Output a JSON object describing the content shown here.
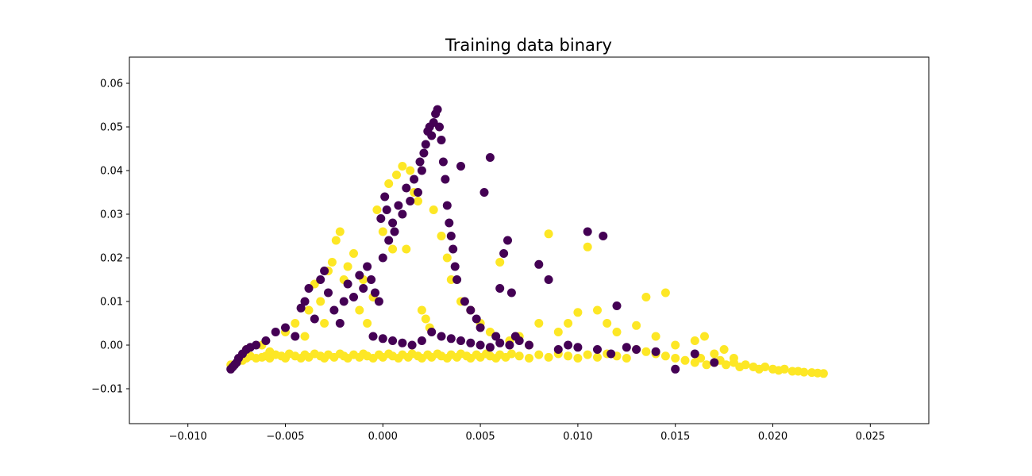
{
  "chart_data": {
    "type": "scatter",
    "title": "Training data binary",
    "xlabel": "",
    "ylabel": "",
    "xlim": [
      -0.013,
      0.028
    ],
    "ylim": [
      -0.018,
      0.066
    ],
    "xticks": [
      -0.01,
      -0.005,
      0.0,
      0.005,
      0.01,
      0.015,
      0.02,
      0.025
    ],
    "xtick_labels": [
      "−0.010",
      "−0.005",
      "0.000",
      "0.005",
      "0.010",
      "0.015",
      "0.020",
      "0.025"
    ],
    "yticks": [
      -0.01,
      0.0,
      0.01,
      0.02,
      0.03,
      0.04,
      0.05,
      0.06
    ],
    "ytick_labels": [
      "−0.01",
      "0.00",
      "0.01",
      "0.02",
      "0.03",
      "0.04",
      "0.05",
      "0.06"
    ],
    "grid": false,
    "legend": "none",
    "series": [
      {
        "color": "#fde725",
        "points": [
          [
            -0.0078,
            -0.0045
          ],
          [
            -0.0075,
            -0.004
          ],
          [
            -0.0072,
            -0.0035
          ],
          [
            -0.007,
            -0.003
          ],
          [
            -0.0068,
            -0.0025
          ],
          [
            -0.0065,
            -0.003
          ],
          [
            -0.0062,
            -0.0028
          ],
          [
            -0.006,
            -0.0025
          ],
          [
            -0.0058,
            -0.003
          ],
          [
            -0.0055,
            -0.0022
          ],
          [
            -0.0052,
            -0.0025
          ],
          [
            -0.005,
            -0.003
          ],
          [
            -0.0048,
            -0.002
          ],
          [
            -0.0045,
            -0.0025
          ],
          [
            -0.0042,
            -0.003
          ],
          [
            -0.004,
            -0.0022
          ],
          [
            -0.0038,
            -0.0028
          ],
          [
            -0.0035,
            -0.002
          ],
          [
            -0.0032,
            -0.0025
          ],
          [
            -0.003,
            -0.003
          ],
          [
            -0.0028,
            -0.0022
          ],
          [
            -0.0025,
            -0.0028
          ],
          [
            -0.0022,
            -0.002
          ],
          [
            -0.002,
            -0.0025
          ],
          [
            -0.0018,
            -0.003
          ],
          [
            -0.0015,
            -0.0022
          ],
          [
            -0.0012,
            -0.0028
          ],
          [
            -0.001,
            -0.002
          ],
          [
            -0.0008,
            -0.0025
          ],
          [
            -0.0005,
            -0.003
          ],
          [
            -0.0002,
            -0.0022
          ],
          [
            0.0,
            -0.0028
          ],
          [
            0.0003,
            -0.002
          ],
          [
            0.0005,
            -0.0025
          ],
          [
            0.0008,
            -0.003
          ],
          [
            0.001,
            -0.0022
          ],
          [
            0.0013,
            -0.0028
          ],
          [
            0.0015,
            -0.002
          ],
          [
            0.0018,
            -0.0025
          ],
          [
            0.002,
            -0.003
          ],
          [
            0.0023,
            -0.0022
          ],
          [
            0.0025,
            -0.0028
          ],
          [
            0.0028,
            -0.002
          ],
          [
            0.003,
            -0.0025
          ],
          [
            0.0033,
            -0.003
          ],
          [
            0.0035,
            -0.0022
          ],
          [
            0.0038,
            -0.0028
          ],
          [
            0.004,
            -0.002
          ],
          [
            0.0043,
            -0.0025
          ],
          [
            0.0045,
            -0.003
          ],
          [
            0.0048,
            -0.0022
          ],
          [
            0.005,
            -0.0028
          ],
          [
            0.0053,
            -0.002
          ],
          [
            0.0055,
            -0.0025
          ],
          [
            0.0058,
            -0.003
          ],
          [
            0.006,
            -0.0022
          ],
          [
            0.0063,
            -0.0028
          ],
          [
            0.0066,
            -0.002
          ],
          [
            0.007,
            -0.0025
          ],
          [
            0.0075,
            -0.003
          ],
          [
            0.008,
            -0.0022
          ],
          [
            0.0085,
            -0.0028
          ],
          [
            0.009,
            -0.002
          ],
          [
            0.0095,
            -0.0025
          ],
          [
            0.01,
            -0.003
          ],
          [
            0.0105,
            -0.0022
          ],
          [
            0.011,
            -0.0028
          ],
          [
            0.0115,
            -0.002
          ],
          [
            0.012,
            -0.0025
          ],
          [
            0.0125,
            -0.003
          ],
          [
            0.013,
            -0.001
          ],
          [
            0.0135,
            -0.0015
          ],
          [
            0.014,
            -0.002
          ],
          [
            0.0145,
            -0.0025
          ],
          [
            0.015,
            -0.003
          ],
          [
            0.0155,
            -0.0035
          ],
          [
            0.016,
            -0.004
          ],
          [
            0.0163,
            -0.003
          ],
          [
            0.0166,
            -0.0045
          ],
          [
            0.017,
            -0.004
          ],
          [
            0.0173,
            -0.0035
          ],
          [
            0.0176,
            -0.0045
          ],
          [
            0.018,
            -0.004
          ],
          [
            0.0183,
            -0.005
          ],
          [
            0.0186,
            -0.0045
          ],
          [
            0.019,
            -0.005
          ],
          [
            0.0193,
            -0.0055
          ],
          [
            0.0196,
            -0.005
          ],
          [
            0.02,
            -0.0055
          ],
          [
            0.0203,
            -0.0058
          ],
          [
            0.0206,
            -0.0055
          ],
          [
            0.021,
            -0.006
          ],
          [
            0.0213,
            -0.006
          ],
          [
            0.0216,
            -0.0062
          ],
          [
            0.022,
            -0.0063
          ],
          [
            0.0223,
            -0.0064
          ],
          [
            0.0226,
            -0.0065
          ],
          [
            -0.007,
            -0.001
          ],
          [
            -0.0062,
            0.0
          ],
          [
            -0.0058,
            -0.0015
          ],
          [
            -0.005,
            0.003
          ],
          [
            -0.0045,
            0.005
          ],
          [
            -0.004,
            0.002
          ],
          [
            -0.0038,
            0.008
          ],
          [
            -0.0035,
            0.014
          ],
          [
            -0.0032,
            0.01
          ],
          [
            -0.003,
            0.005
          ],
          [
            -0.0028,
            0.017
          ],
          [
            -0.0026,
            0.019
          ],
          [
            -0.0024,
            0.024
          ],
          [
            -0.0022,
            0.026
          ],
          [
            -0.002,
            0.015
          ],
          [
            -0.0018,
            0.018
          ],
          [
            -0.0015,
            0.021
          ],
          [
            -0.0012,
            0.008
          ],
          [
            -0.001,
            0.015
          ],
          [
            -0.0008,
            0.005
          ],
          [
            -0.0005,
            0.011
          ],
          [
            -0.0003,
            0.031
          ],
          [
            0.0,
            0.026
          ],
          [
            0.0003,
            0.037
          ],
          [
            0.0005,
            0.022
          ],
          [
            0.0007,
            0.039
          ],
          [
            0.001,
            0.041
          ],
          [
            0.0012,
            0.022
          ],
          [
            0.0014,
            0.04
          ],
          [
            0.0016,
            0.035
          ],
          [
            0.0018,
            0.033
          ],
          [
            0.002,
            0.008
          ],
          [
            0.0022,
            0.006
          ],
          [
            0.0024,
            0.004
          ],
          [
            0.0026,
            0.031
          ],
          [
            0.003,
            0.025
          ],
          [
            0.0033,
            0.02
          ],
          [
            0.0035,
            0.015
          ],
          [
            0.004,
            0.01
          ],
          [
            0.0045,
            0.008
          ],
          [
            0.005,
            0.005
          ],
          [
            0.0055,
            0.003
          ],
          [
            0.006,
            0.019
          ],
          [
            0.0065,
            0.001
          ],
          [
            0.007,
            0.002
          ],
          [
            0.0075,
            0.0
          ],
          [
            0.008,
            0.005
          ],
          [
            0.0085,
            0.0255
          ],
          [
            0.009,
            0.003
          ],
          [
            0.0095,
            0.005
          ],
          [
            0.01,
            0.0075
          ],
          [
            0.0105,
            0.0225
          ],
          [
            0.011,
            0.008
          ],
          [
            0.0115,
            0.005
          ],
          [
            0.012,
            0.003
          ],
          [
            0.013,
            0.0045
          ],
          [
            0.0135,
            0.011
          ],
          [
            0.014,
            0.002
          ],
          [
            0.0145,
            0.012
          ],
          [
            0.015,
            0.0
          ],
          [
            0.016,
            0.001
          ],
          [
            0.0165,
            0.002
          ],
          [
            0.017,
            -0.002
          ],
          [
            0.0175,
            -0.001
          ],
          [
            0.018,
            -0.003
          ]
        ]
      },
      {
        "color": "#440154",
        "points": [
          [
            -0.0078,
            -0.0055
          ],
          [
            -0.0077,
            -0.005
          ],
          [
            -0.0076,
            -0.0045
          ],
          [
            -0.0075,
            -0.004
          ],
          [
            -0.0074,
            -0.003
          ],
          [
            -0.0072,
            -0.002
          ],
          [
            -0.007,
            -0.001
          ],
          [
            -0.0068,
            -0.0005
          ],
          [
            -0.0065,
            0.0
          ],
          [
            -0.006,
            0.001
          ],
          [
            -0.0055,
            0.003
          ],
          [
            -0.005,
            0.004
          ],
          [
            -0.0045,
            0.002
          ],
          [
            -0.0042,
            0.0085
          ],
          [
            -0.004,
            0.01
          ],
          [
            -0.0038,
            0.013
          ],
          [
            -0.0035,
            0.006
          ],
          [
            -0.0032,
            0.015
          ],
          [
            -0.003,
            0.017
          ],
          [
            -0.0028,
            0.012
          ],
          [
            -0.0025,
            0.008
          ],
          [
            -0.0022,
            0.005
          ],
          [
            -0.002,
            0.01
          ],
          [
            -0.0018,
            0.014
          ],
          [
            -0.0015,
            0.011
          ],
          [
            -0.0012,
            0.016
          ],
          [
            -0.001,
            0.013
          ],
          [
            -0.0008,
            0.018
          ],
          [
            -0.0006,
            0.015
          ],
          [
            -0.0004,
            0.012
          ],
          [
            -0.0002,
            0.01
          ],
          [
            -0.0001,
            0.029
          ],
          [
            0.0,
            0.02
          ],
          [
            0.0001,
            0.034
          ],
          [
            0.0002,
            0.031
          ],
          [
            0.0003,
            0.024
          ],
          [
            0.0005,
            0.028
          ],
          [
            0.0006,
            0.026
          ],
          [
            0.0008,
            0.032
          ],
          [
            0.001,
            0.03
          ],
          [
            0.0012,
            0.036
          ],
          [
            0.0014,
            0.033
          ],
          [
            0.0016,
            0.038
          ],
          [
            0.0018,
            0.035
          ],
          [
            0.0019,
            0.042
          ],
          [
            0.002,
            0.04
          ],
          [
            0.0021,
            0.044
          ],
          [
            0.0022,
            0.046
          ],
          [
            0.0023,
            0.049
          ],
          [
            0.0024,
            0.05
          ],
          [
            0.0025,
            0.048
          ],
          [
            0.0026,
            0.051
          ],
          [
            0.0027,
            0.053
          ],
          [
            0.0028,
            0.054
          ],
          [
            0.0029,
            0.05
          ],
          [
            0.003,
            0.047
          ],
          [
            0.0031,
            0.042
          ],
          [
            0.0032,
            0.038
          ],
          [
            0.0033,
            0.032
          ],
          [
            0.0034,
            0.028
          ],
          [
            0.0035,
            0.025
          ],
          [
            0.0036,
            0.022
          ],
          [
            0.0037,
            0.018
          ],
          [
            0.0038,
            0.015
          ],
          [
            0.004,
            0.041
          ],
          [
            0.0042,
            0.01
          ],
          [
            0.0045,
            0.008
          ],
          [
            0.0048,
            0.006
          ],
          [
            0.005,
            0.004
          ],
          [
            0.0052,
            0.035
          ],
          [
            0.0055,
            0.043
          ],
          [
            0.0058,
            0.002
          ],
          [
            0.006,
            0.013
          ],
          [
            0.0062,
            0.021
          ],
          [
            0.0064,
            0.024
          ],
          [
            0.0066,
            0.012
          ],
          [
            0.0068,
            0.002
          ],
          [
            0.007,
            0.001
          ],
          [
            0.0075,
            0.0
          ],
          [
            0.008,
            0.0185
          ],
          [
            0.0085,
            0.015
          ],
          [
            0.009,
            -0.001
          ],
          [
            0.0095,
            0.0
          ],
          [
            0.01,
            -0.0005
          ],
          [
            0.0105,
            0.026
          ],
          [
            0.011,
            -0.001
          ],
          [
            0.0113,
            0.025
          ],
          [
            0.0117,
            -0.002
          ],
          [
            0.012,
            0.009
          ],
          [
            0.0125,
            -0.0005
          ],
          [
            0.013,
            -0.001
          ],
          [
            0.014,
            -0.0015
          ],
          [
            0.015,
            -0.0055
          ],
          [
            0.016,
            -0.002
          ],
          [
            0.017,
            -0.004
          ],
          [
            0.002,
            0.001
          ],
          [
            0.0015,
            0.0
          ],
          [
            0.001,
            0.0005
          ],
          [
            0.0005,
            0.001
          ],
          [
            0.0,
            0.0015
          ],
          [
            -0.0005,
            0.002
          ],
          [
            0.0025,
            0.003
          ],
          [
            0.003,
            0.002
          ],
          [
            0.0035,
            0.0015
          ],
          [
            0.004,
            0.001
          ],
          [
            0.0045,
            0.0005
          ],
          [
            0.005,
            0.0
          ],
          [
            0.0055,
            -0.0005
          ],
          [
            0.006,
            0.0005
          ],
          [
            0.0065,
            0.0
          ]
        ]
      }
    ]
  }
}
